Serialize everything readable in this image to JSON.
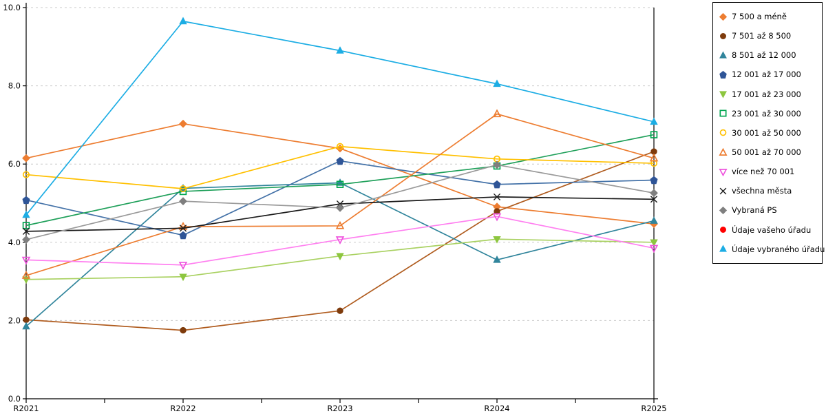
{
  "chart_data": {
    "type": "line",
    "x_categories": [
      "R2021",
      "R2022",
      "R2023",
      "R2024",
      "R2025"
    ],
    "ylim": [
      0,
      10
    ],
    "ytick_step": 2,
    "ytick_labels": [
      "0.0",
      "2.0",
      "4.0",
      "6.0",
      "8.0",
      "10.0"
    ],
    "grid": {
      "horizontal": true,
      "style": "dashed",
      "color": "#c9c9c9"
    },
    "legend_position": "right",
    "series": [
      {
        "name": "7 500 a méně",
        "marker": "diamond",
        "filled": true,
        "color": "#ED7D31",
        "values": [
          6.15,
          7.03,
          6.4,
          4.91,
          4.47
        ]
      },
      {
        "name": "7 501 až 8 500",
        "marker": "circle",
        "filled": true,
        "color": "#7E3B0C",
        "line_color": "#B05C1F",
        "values": [
          2.02,
          1.75,
          2.25,
          4.79,
          6.32
        ]
      },
      {
        "name": "8 501 až 12 000",
        "marker": "triangle-up",
        "filled": true,
        "color": "#31859C",
        "values": [
          1.85,
          5.38,
          5.52,
          3.55,
          4.55
        ]
      },
      {
        "name": "12 001 až 17 000",
        "marker": "pentagon",
        "filled": true,
        "color": "#2F5597",
        "line_color": "#4472A8",
        "values": [
          5.08,
          4.18,
          6.08,
          5.48,
          5.59
        ]
      },
      {
        "name": "17 001 až 23 000",
        "marker": "triangle-down",
        "filled": true,
        "color": "#8DC63F",
        "line_color": "#A9D161",
        "values": [
          3.05,
          3.12,
          3.65,
          4.08,
          4.0
        ]
      },
      {
        "name": "23 001 až 30 000",
        "marker": "square",
        "filled": false,
        "color": "#00A550",
        "line_color": "#1FA05A",
        "values": [
          4.43,
          5.3,
          5.48,
          5.95,
          6.75
        ]
      },
      {
        "name": "30 001 až 50 000",
        "marker": "circle",
        "filled": false,
        "color": "#FFC000",
        "values": [
          5.73,
          5.37,
          6.45,
          6.13,
          6.02
        ]
      },
      {
        "name": "50 001 až 70 000",
        "marker": "triangle-up",
        "filled": false,
        "color": "#ED7D31",
        "values": [
          3.15,
          4.4,
          4.42,
          7.28,
          6.15
        ]
      },
      {
        "name": "více než 70 001",
        "marker": "triangle-down",
        "filled": false,
        "color": "#EE55DD",
        "line_color": "#FF80F0",
        "values": [
          3.55,
          3.42,
          4.07,
          4.66,
          3.85
        ]
      },
      {
        "name": "všechna města",
        "marker": "x",
        "filled": false,
        "color": "#1A1A1A",
        "values": [
          4.28,
          4.36,
          4.98,
          5.16,
          5.1
        ]
      },
      {
        "name": "Vybraná PS",
        "marker": "diamond",
        "filled": true,
        "color": "#7F7F7F",
        "line_color": "#9A9A9A",
        "values": [
          4.07,
          5.05,
          4.88,
          5.98,
          5.26
        ]
      },
      {
        "name": "Údaje vašeho úřadu",
        "marker": "circle",
        "filled": true,
        "color": "#FF0000",
        "values": []
      },
      {
        "name": "Údaje vybraného úřadu",
        "marker": "triangle-up",
        "filled": true,
        "color": "#1CADE4",
        "values": [
          4.7,
          9.65,
          8.9,
          8.05,
          7.08
        ]
      }
    ]
  }
}
